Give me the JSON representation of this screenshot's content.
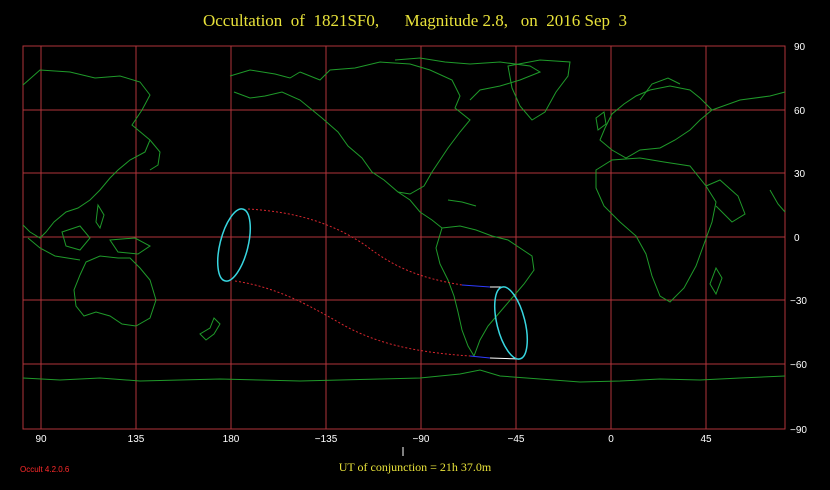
{
  "title": "Occultation  of  1821SF0,      Magnitude 2.8,   on  2016 Sep  3",
  "conjunction_text": "UT of conjunction = 21h 37.0m",
  "software_version": "Occult 4.2.0.6",
  "longitude_labels": [
    "90",
    "135",
    "180",
    "−135",
    "−90",
    "−45",
    "0",
    "45"
  ],
  "latitude_labels": [
    "90",
    "60",
    "30",
    "0",
    "−30",
    "−60",
    "−90"
  ],
  "colors": {
    "background": "#000000",
    "grid": "#b0343a",
    "coast": "#1f9a2a",
    "title": "#e8e23a",
    "path_edge": "#d8262e",
    "ellipse": "#38d6e0",
    "center_line_day": "#ffffff",
    "center_line_night": "#2f3bff",
    "version": "#ff2a2a"
  }
}
